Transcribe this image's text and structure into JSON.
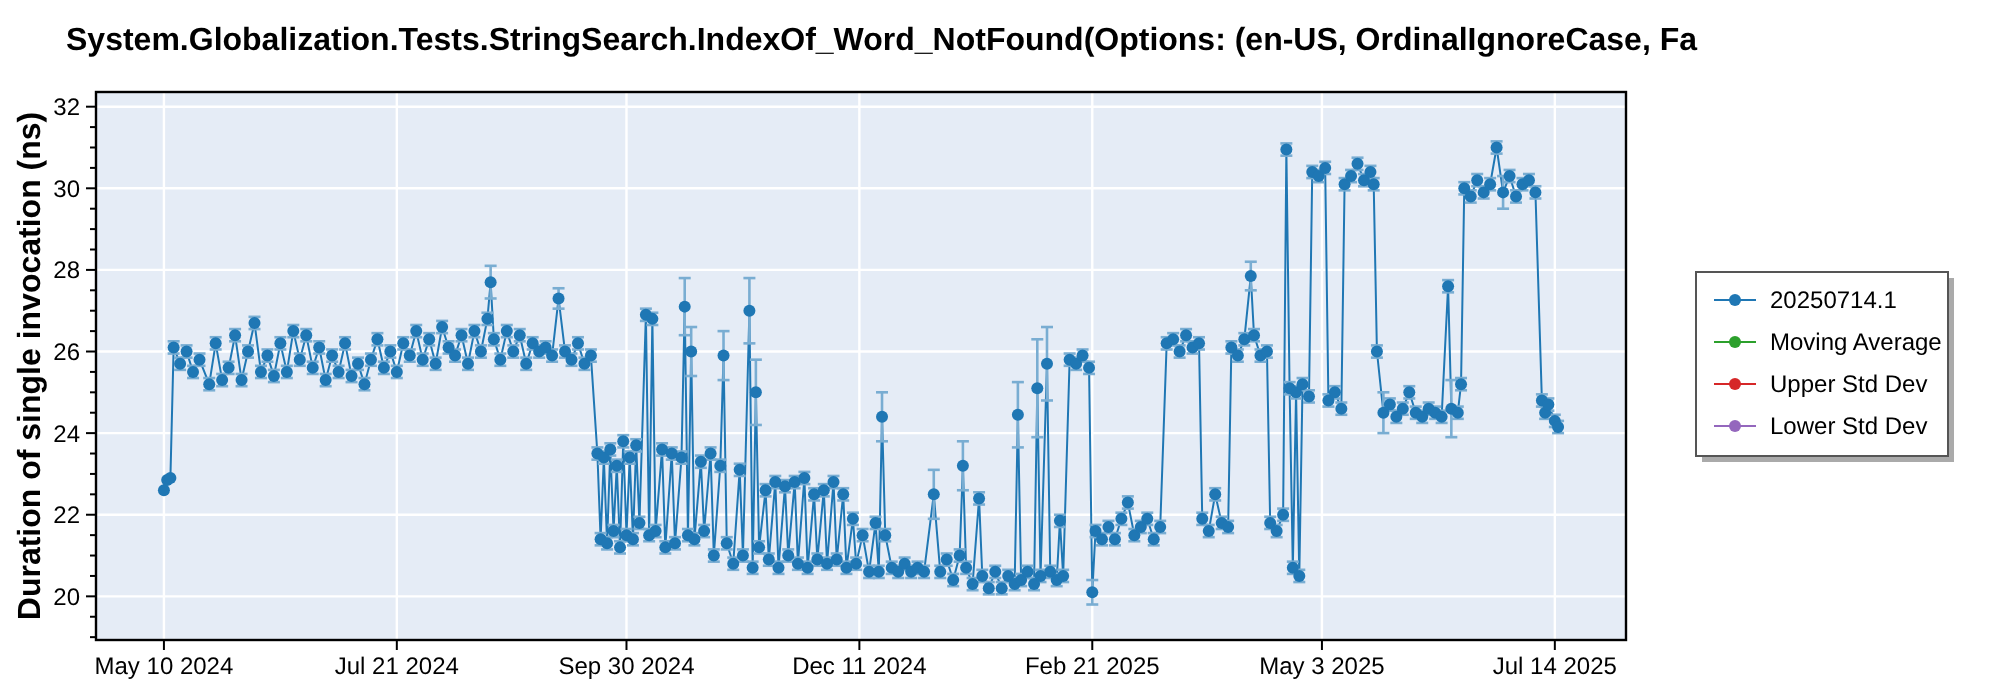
{
  "chart_data": {
    "type": "line",
    "title": "System.Globalization.Tests.StringSearch.IndexOf_Word_NotFound(Options: (en-US, OrdinalIgnoreCase, Fa",
    "ylabel": "Duration of single invocation (ns)",
    "xlim": [
      "2024-04-19",
      "2025-08-05"
    ],
    "ylim": [
      18.93,
      32.36
    ],
    "xticks": [
      {
        "value": "2024-05-10",
        "label": "May 10 2024"
      },
      {
        "value": "2024-07-21",
        "label": "Jul 21 2024"
      },
      {
        "value": "2024-09-30",
        "label": "Sep 30 2024"
      },
      {
        "value": "2024-12-11",
        "label": "Dec 11 2024"
      },
      {
        "value": "2025-02-21",
        "label": "Feb 21 2025"
      },
      {
        "value": "2025-05-03",
        "label": "May 3 2025"
      },
      {
        "value": "2025-07-14",
        "label": "Jul 14 2025"
      }
    ],
    "yticks": [
      {
        "value": 19,
        "label": null
      },
      {
        "value": 19.5,
        "label": null
      },
      20,
      {
        "value": 20.5,
        "label": null
      },
      {
        "value": 21,
        "label": null
      },
      {
        "value": 21.5,
        "label": null
      },
      22,
      {
        "value": 22.5,
        "label": null
      },
      {
        "value": 23,
        "label": null
      },
      {
        "value": 23.5,
        "label": null
      },
      24,
      {
        "value": 24.5,
        "label": null
      },
      {
        "value": 25,
        "label": null
      },
      {
        "value": 25.5,
        "label": null
      },
      26,
      {
        "value": 26.5,
        "label": null
      },
      {
        "value": 27,
        "label": null
      },
      {
        "value": 27.5,
        "label": null
      },
      28,
      {
        "value": 28.5,
        "label": null
      },
      {
        "value": 29,
        "label": null
      },
      {
        "value": 29.5,
        "label": null
      },
      30,
      {
        "value": 30.5,
        "label": null
      },
      {
        "value": 31,
        "label": null
      },
      {
        "value": 31.5,
        "label": null
      },
      32
    ],
    "grid": true,
    "legend": "right",
    "marker": "circle",
    "line_style": "solid",
    "series": [
      {
        "name": "20250714.1",
        "color": "#1f77b4",
        "x": [
          "2024-05-10",
          "2024-05-11",
          "2024-05-12",
          "2024-05-13",
          "2024-05-15",
          "2024-05-17",
          "2024-05-19",
          "2024-05-21",
          "2024-05-24",
          "2024-05-26",
          "2024-05-28",
          "2024-05-30",
          "2024-06-01",
          "2024-06-03",
          "2024-06-05",
          "2024-06-07",
          "2024-06-09",
          "2024-06-11",
          "2024-06-13",
          "2024-06-15",
          "2024-06-17",
          "2024-06-19",
          "2024-06-21",
          "2024-06-23",
          "2024-06-25",
          "2024-06-27",
          "2024-06-29",
          "2024-07-01",
          "2024-07-03",
          "2024-07-05",
          "2024-07-07",
          "2024-07-09",
          "2024-07-11",
          "2024-07-13",
          "2024-07-15",
          "2024-07-17",
          "2024-07-19",
          "2024-07-21",
          "2024-07-23",
          "2024-07-25",
          "2024-07-27",
          "2024-07-29",
          "2024-07-31",
          "2024-08-02",
          "2024-08-04",
          "2024-08-06",
          "2024-08-08",
          "2024-08-10",
          "2024-08-12",
          "2024-08-14",
          "2024-08-16",
          "2024-08-18",
          "2024-08-19",
          "2024-08-20",
          "2024-08-22",
          "2024-08-24",
          "2024-08-26",
          "2024-08-28",
          "2024-08-30",
          "2024-09-01",
          "2024-09-03",
          "2024-09-05",
          "2024-09-07",
          "2024-09-09",
          "2024-09-11",
          "2024-09-13",
          "2024-09-15",
          "2024-09-17",
          "2024-09-19",
          "2024-09-21",
          "2024-09-22",
          "2024-09-23",
          "2024-09-24",
          "2024-09-25",
          "2024-09-26",
          "2024-09-27",
          "2024-09-28",
          "2024-09-29",
          "2024-09-30",
          "2024-10-01",
          "2024-10-02",
          "2024-10-03",
          "2024-10-04",
          "2024-10-06",
          "2024-10-07",
          "2024-10-08",
          "2024-10-09",
          "2024-10-11",
          "2024-10-12",
          "2024-10-14",
          "2024-10-15",
          "2024-10-17",
          "2024-10-18",
          "2024-10-19",
          "2024-10-20",
          "2024-10-21",
          "2024-10-23",
          "2024-10-24",
          "2024-10-26",
          "2024-10-27",
          "2024-10-29",
          "2024-10-30",
          "2024-10-31",
          "2024-11-02",
          "2024-11-04",
          "2024-11-05",
          "2024-11-07",
          "2024-11-08",
          "2024-11-09",
          "2024-11-10",
          "2024-11-12",
          "2024-11-13",
          "2024-11-15",
          "2024-11-16",
          "2024-11-18",
          "2024-11-19",
          "2024-11-21",
          "2024-11-22",
          "2024-11-24",
          "2024-11-25",
          "2024-11-27",
          "2024-11-28",
          "2024-11-30",
          "2024-12-01",
          "2024-12-03",
          "2024-12-04",
          "2024-12-06",
          "2024-12-07",
          "2024-12-09",
          "2024-12-10",
          "2024-12-12",
          "2024-12-14",
          "2024-12-16",
          "2024-12-17",
          "2024-12-18",
          "2024-12-19",
          "2024-12-21",
          "2024-12-23",
          "2024-12-25",
          "2024-12-27",
          "2024-12-29",
          "2024-12-31",
          "2025-01-03",
          "2025-01-05",
          "2025-01-07",
          "2025-01-09",
          "2025-01-11",
          "2025-01-12",
          "2025-01-13",
          "2025-01-15",
          "2025-01-17",
          "2025-01-18",
          "2025-01-20",
          "2025-01-22",
          "2025-01-24",
          "2025-01-26",
          "2025-01-28",
          "2025-01-29",
          "2025-01-30",
          "2025-02-01",
          "2025-02-03",
          "2025-02-04",
          "2025-02-05",
          "2025-02-07",
          "2025-02-08",
          "2025-02-10",
          "2025-02-11",
          "2025-02-12",
          "2025-02-14",
          "2025-02-16",
          "2025-02-18",
          "2025-02-20",
          "2025-02-21",
          "2025-02-22",
          "2025-02-24",
          "2025-02-26",
          "2025-02-28",
          "2025-03-02",
          "2025-03-04",
          "2025-03-06",
          "2025-03-08",
          "2025-03-10",
          "2025-03-12",
          "2025-03-14",
          "2025-03-16",
          "2025-03-18",
          "2025-03-20",
          "2025-03-22",
          "2025-03-24",
          "2025-03-26",
          "2025-03-27",
          "2025-03-29",
          "2025-03-31",
          "2025-04-02",
          "2025-04-04",
          "2025-04-05",
          "2025-04-07",
          "2025-04-09",
          "2025-04-11",
          "2025-04-12",
          "2025-04-14",
          "2025-04-16",
          "2025-04-17",
          "2025-04-19",
          "2025-04-21",
          "2025-04-22",
          "2025-04-23",
          "2025-04-24",
          "2025-04-25",
          "2025-04-26",
          "2025-04-27",
          "2025-04-29",
          "2025-04-30",
          "2025-05-02",
          "2025-05-04",
          "2025-05-05",
          "2025-05-07",
          "2025-05-09",
          "2025-05-10",
          "2025-05-12",
          "2025-05-14",
          "2025-05-16",
          "2025-05-18",
          "2025-05-19",
          "2025-05-20",
          "2025-05-22",
          "2025-05-24",
          "2025-05-26",
          "2025-05-28",
          "2025-05-30",
          "2025-06-01",
          "2025-06-03",
          "2025-06-05",
          "2025-06-07",
          "2025-06-09",
          "2025-06-11",
          "2025-06-12",
          "2025-06-14",
          "2025-06-15",
          "2025-06-16",
          "2025-06-18",
          "2025-06-20",
          "2025-06-22",
          "2025-06-24",
          "2025-06-26",
          "2025-06-28",
          "2025-06-30",
          "2025-07-02",
          "2025-07-04",
          "2025-07-06",
          "2025-07-08",
          "2025-07-10",
          "2025-07-11",
          "2025-07-12",
          "2025-07-14",
          "2025-07-15"
        ],
        "values": [
          22.6,
          22.85,
          22.9,
          26.1,
          25.7,
          26.0,
          25.5,
          25.8,
          25.2,
          26.2,
          25.3,
          25.6,
          26.4,
          25.3,
          26.0,
          26.7,
          25.5,
          25.9,
          25.4,
          26.2,
          25.5,
          26.5,
          25.8,
          26.4,
          25.6,
          26.1,
          25.3,
          25.9,
          25.5,
          26.2,
          25.4,
          25.7,
          25.2,
          25.8,
          26.3,
          25.6,
          26.0,
          25.5,
          26.2,
          25.9,
          26.5,
          25.8,
          26.3,
          25.7,
          26.6,
          26.1,
          25.9,
          26.4,
          25.7,
          26.5,
          26.0,
          26.8,
          27.7,
          26.3,
          25.8,
          26.5,
          26.0,
          26.4,
          25.7,
          26.2,
          26.0,
          26.1,
          25.9,
          27.3,
          26.0,
          25.8,
          26.2,
          25.7,
          25.9,
          23.5,
          21.4,
          23.4,
          21.3,
          23.6,
          21.6,
          23.2,
          21.2,
          23.8,
          21.5,
          23.4,
          21.4,
          23.7,
          21.8,
          26.9,
          21.5,
          26.8,
          21.6,
          23.6,
          21.2,
          23.5,
          21.3,
          23.4,
          27.1,
          21.5,
          26.0,
          21.4,
          23.3,
          21.6,
          23.5,
          21.0,
          23.2,
          25.9,
          21.3,
          20.8,
          23.1,
          21.0,
          27.0,
          20.7,
          25.0,
          21.2,
          22.6,
          20.9,
          22.8,
          20.7,
          22.7,
          21.0,
          22.8,
          20.8,
          22.9,
          20.7,
          22.5,
          20.9,
          22.6,
          20.8,
          22.8,
          20.9,
          22.5,
          20.7,
          21.9,
          20.8,
          21.5,
          20.6,
          21.8,
          20.6,
          24.4,
          21.5,
          20.7,
          20.6,
          20.8,
          20.6,
          20.7,
          20.6,
          22.5,
          20.6,
          20.9,
          20.4,
          21.0,
          23.2,
          20.7,
          20.3,
          22.4,
          20.5,
          20.2,
          20.6,
          20.2,
          20.5,
          20.3,
          24.45,
          20.4,
          20.6,
          20.3,
          25.1,
          20.5,
          25.7,
          20.6,
          20.4,
          21.85,
          20.5,
          25.8,
          25.7,
          25.9,
          25.6,
          20.1,
          21.6,
          21.4,
          21.7,
          21.4,
          21.9,
          22.3,
          21.5,
          21.7,
          21.9,
          21.4,
          21.7,
          26.2,
          26.3,
          26.0,
          26.4,
          26.1,
          26.2,
          21.9,
          21.6,
          22.5,
          21.8,
          21.7,
          26.1,
          25.9,
          26.3,
          27.85,
          26.4,
          25.9,
          26.0,
          21.8,
          21.6,
          22.0,
          30.95,
          25.1,
          20.7,
          25.0,
          20.5,
          25.2,
          24.9,
          30.4,
          30.3,
          30.5,
          24.8,
          25.0,
          24.6,
          30.1,
          30.3,
          30.6,
          30.2,
          30.4,
          30.1,
          26.0,
          24.5,
          24.7,
          24.4,
          24.6,
          25.0,
          24.5,
          24.4,
          24.6,
          24.5,
          24.4,
          27.6,
          24.6,
          24.5,
          25.2,
          30.0,
          29.8,
          30.2,
          29.9,
          30.1,
          31.0,
          29.9,
          30.3,
          29.8,
          30.1,
          30.2,
          29.9,
          24.8,
          24.5,
          24.7,
          24.3,
          24.15
        ],
        "errors": [
          null,
          null,
          null,
          0.15,
          0.15,
          0.15,
          0.15,
          0.15,
          0.15,
          0.15,
          0.15,
          0.15,
          0.15,
          0.15,
          0.15,
          0.15,
          0.15,
          0.15,
          0.15,
          0.15,
          0.15,
          0.15,
          0.15,
          0.15,
          0.15,
          0.15,
          0.15,
          0.15,
          0.15,
          0.15,
          0.15,
          0.15,
          0.15,
          0.15,
          0.15,
          0.15,
          0.15,
          0.15,
          0.15,
          0.15,
          0.15,
          0.15,
          0.15,
          0.15,
          0.15,
          0.15,
          0.15,
          0.15,
          0.15,
          0.15,
          0.15,
          0.15,
          0.4,
          0.15,
          0.15,
          0.15,
          0.15,
          0.15,
          0.15,
          0.15,
          0.15,
          0.15,
          0.15,
          0.25,
          0.15,
          0.15,
          0.15,
          0.15,
          0.15,
          0.15,
          0.15,
          0.15,
          0.15,
          0.15,
          0.15,
          0.15,
          0.15,
          0.15,
          0.15,
          0.15,
          0.15,
          0.15,
          0.15,
          0.15,
          0.15,
          0.15,
          0.15,
          0.15,
          0.15,
          0.15,
          0.15,
          0.15,
          0.7,
          0.15,
          0.6,
          0.15,
          0.15,
          0.15,
          0.15,
          0.15,
          0.15,
          0.6,
          0.15,
          0.15,
          0.15,
          0.15,
          0.8,
          0.15,
          0.8,
          0.15,
          0.15,
          0.15,
          0.15,
          0.15,
          0.15,
          0.15,
          0.15,
          0.15,
          0.15,
          0.15,
          0.15,
          0.15,
          0.15,
          0.15,
          0.15,
          0.15,
          0.15,
          0.15,
          0.15,
          0.15,
          0.15,
          0.15,
          0.15,
          0.15,
          0.6,
          0.15,
          0.15,
          0.15,
          0.15,
          0.15,
          0.15,
          0.15,
          0.6,
          0.15,
          0.15,
          0.15,
          0.15,
          0.6,
          0.15,
          0.15,
          0.15,
          0.15,
          0.15,
          0.15,
          0.15,
          0.15,
          0.15,
          0.8,
          0.15,
          0.15,
          0.15,
          1.2,
          0.15,
          0.9,
          0.15,
          0.15,
          0.15,
          0.15,
          0.15,
          0.15,
          0.15,
          0.15,
          0.3,
          0.15,
          0.15,
          0.15,
          0.15,
          0.15,
          0.15,
          0.15,
          0.15,
          0.15,
          0.15,
          0.15,
          0.15,
          0.15,
          0.15,
          0.15,
          0.15,
          0.15,
          0.15,
          0.15,
          0.15,
          0.15,
          0.15,
          0.15,
          0.15,
          0.15,
          0.35,
          0.15,
          0.15,
          0.15,
          0.15,
          0.15,
          0.15,
          0.15,
          0.15,
          0.15,
          0.15,
          0.15,
          0.15,
          0.15,
          0.15,
          0.15,
          0.15,
          0.15,
          0.15,
          0.15,
          0.15,
          0.15,
          0.15,
          0.15,
          0.15,
          0.15,
          0.15,
          0.5,
          0.15,
          0.15,
          0.15,
          0.15,
          0.15,
          0.15,
          0.15,
          0.15,
          0.15,
          0.15,
          0.7,
          0.15,
          0.15,
          0.15,
          0.15,
          0.15,
          0.15,
          0.15,
          0.15,
          0.4,
          0.15,
          0.15,
          0.15,
          0.15,
          0.15,
          0.15,
          0.15,
          0.15,
          0.15,
          0.15
        ]
      },
      {
        "name": "Moving Average",
        "color": "#2ca02c"
      },
      {
        "name": "Upper Std Dev",
        "color": "#d62728"
      },
      {
        "name": "Lower Std Dev",
        "color": "#9467bd"
      }
    ]
  }
}
